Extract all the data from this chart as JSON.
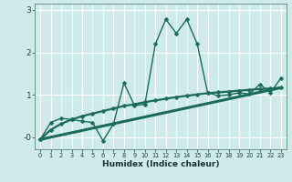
{
  "xlabel": "Humidex (Indice chaleur)",
  "bg_color": "#ceeaea",
  "grid_color": "#ffffff",
  "line_color": "#1a6b5a",
  "xlim": [
    -0.5,
    23.5
  ],
  "ylim": [
    -0.28,
    3.15
  ],
  "yticks": [
    0,
    1,
    2,
    3
  ],
  "ytick_labels": [
    "-0",
    "1",
    "2",
    "3"
  ],
  "xtick_labels": [
    "0",
    "1",
    "2",
    "3",
    "4",
    "5",
    "6",
    "7",
    "8",
    "9",
    "10",
    "11",
    "12",
    "13",
    "14",
    "15",
    "16",
    "17",
    "18",
    "19",
    "20",
    "21",
    "22",
    "23"
  ],
  "line1_x": [
    0,
    1,
    2,
    3,
    4,
    5,
    6,
    7,
    8,
    9,
    10,
    11,
    12,
    13,
    14,
    15,
    16,
    17,
    18,
    19,
    20,
    21,
    22,
    23
  ],
  "line1_y": [
    -0.05,
    0.35,
    0.45,
    0.42,
    0.38,
    0.35,
    -0.08,
    0.32,
    1.28,
    0.75,
    0.78,
    2.2,
    2.78,
    2.45,
    2.78,
    2.2,
    1.05,
    0.98,
    1.0,
    1.05,
    1.02,
    1.25,
    1.05,
    1.4
  ],
  "line2_x": [
    0,
    1,
    2,
    3,
    4,
    5,
    6,
    7,
    8,
    9,
    10,
    11,
    12,
    13,
    14,
    15,
    16,
    17,
    18,
    19,
    20,
    21,
    22,
    23
  ],
  "line2_y": [
    -0.05,
    0.18,
    0.32,
    0.42,
    0.5,
    0.56,
    0.62,
    0.68,
    0.74,
    0.78,
    0.83,
    0.87,
    0.91,
    0.95,
    0.98,
    1.01,
    1.04,
    1.06,
    1.08,
    1.1,
    1.12,
    1.14,
    1.15,
    1.17
  ],
  "line3_x": [
    0,
    23
  ],
  "line3_y": [
    -0.05,
    1.17
  ],
  "marker_size": 2.5,
  "linewidth": 1.0
}
